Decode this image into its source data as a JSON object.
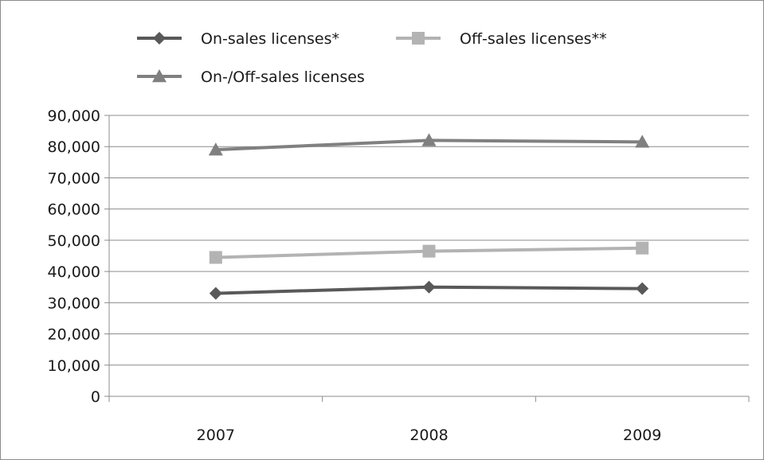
{
  "chart_data": {
    "type": "line",
    "title": "",
    "xlabel": "",
    "ylabel": "",
    "x": [
      "2007",
      "2008",
      "2009"
    ],
    "ylim": [
      0,
      90000
    ],
    "yticks": [
      "0",
      "10,000",
      "20,000",
      "30,000",
      "40,000",
      "50,000",
      "60,000",
      "70,000",
      "80,000",
      "90,000"
    ],
    "grid": true,
    "legend_position": "top",
    "series": [
      {
        "name": "On-sales licenses*",
        "values": [
          33000,
          35000,
          34500
        ],
        "color": "#595959",
        "marker": "diamond"
      },
      {
        "name": "Off-sales licenses**",
        "values": [
          44500,
          46500,
          47500
        ],
        "color": "#b3b3b3",
        "marker": "square"
      },
      {
        "name": "On-/Off-sales licenses",
        "values": [
          79000,
          82000,
          81500
        ],
        "color": "#808080",
        "marker": "triangle"
      }
    ]
  }
}
